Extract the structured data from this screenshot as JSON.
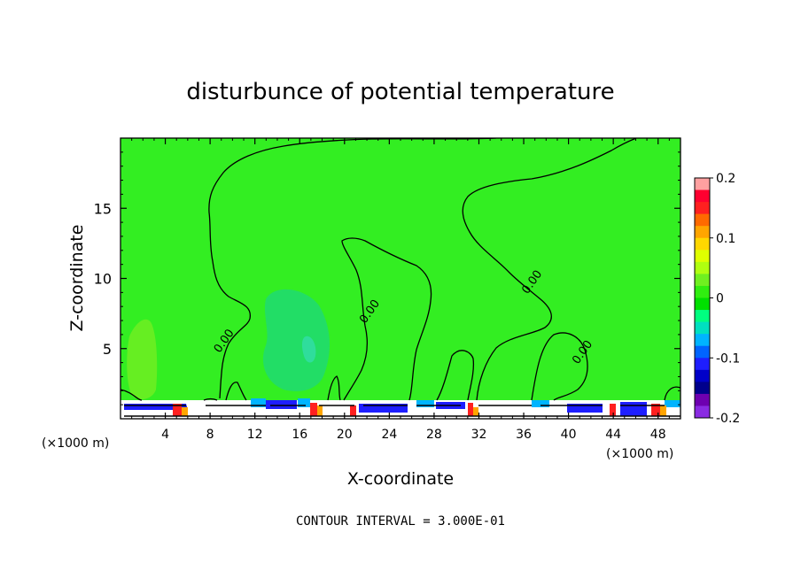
{
  "chart_data": {
    "type": "heatmap",
    "title": "disturbunce of potential temperature",
    "xlabel": "X-coordinate",
    "ylabel": "Z-coordinate",
    "x_unit_left": "(×1000 m)",
    "x_unit_right": "(×1000 m)",
    "footer": "CONTOUR INTERVAL = 3.000E-01",
    "xlim": [
      0,
      50
    ],
    "ylim": [
      0,
      20
    ],
    "x_ticks": [
      4,
      8,
      12,
      16,
      20,
      24,
      28,
      32,
      36,
      40,
      44,
      48
    ],
    "y_ticks": [
      5,
      10,
      15
    ],
    "contour_labels": [
      {
        "text": "0.00",
        "x": 9.5,
        "y": 5.4
      },
      {
        "text": "0.00",
        "x": 22.5,
        "y": 7.5
      },
      {
        "text": "0.00",
        "x": 37.0,
        "y": 9.6
      },
      {
        "text": "0.00",
        "x": 41.5,
        "y": 4.6
      }
    ],
    "colorbar": {
      "min": -0.2,
      "max": 0.2,
      "tick_labels": [
        "0.2",
        "0.1",
        "0",
        "-0.1",
        "-0.2"
      ],
      "tick_values": [
        0.2,
        0.1,
        0,
        -0.1,
        -0.2
      ],
      "colors": [
        "#ffa0a0",
        "#ff0030",
        "#ff2020",
        "#ff6a00",
        "#ffa500",
        "#ffd700",
        "#dfff00",
        "#b0ff10",
        "#70f020",
        "#30ee10",
        "#00e000",
        "#00ff80",
        "#00e0c0",
        "#00b4ff",
        "#0064ff",
        "#1e1eff",
        "#0000c8",
        "#00008c",
        "#6e00b0",
        "#8a2be2"
      ]
    }
  }
}
